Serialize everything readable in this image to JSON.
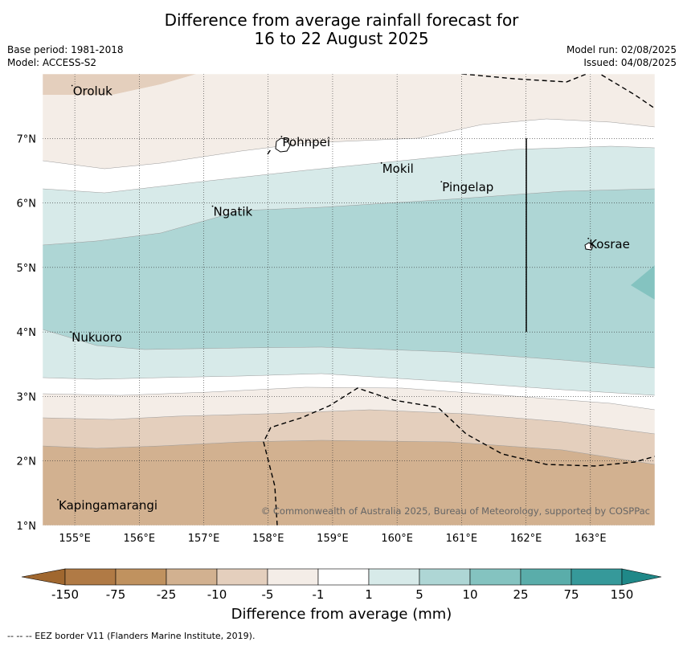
{
  "title_line1": "Difference from average rainfall forecast for",
  "title_line2": "16 to 22 August 2025",
  "base_period": "Base period: 1981-2018",
  "model": "Model: ACCESS-S2",
  "model_run": "Model run: 02/08/2025",
  "issued": "Issued: 04/08/2025",
  "copyright": "© Commonwealth of Australia 2025, Bureau of Meteorology, supported by COSPPac",
  "map": {
    "lon_range": [
      154.5,
      164.0
    ],
    "lat_range": [
      1.0,
      8.0
    ],
    "lon_ticks": [
      "155°E",
      "156°E",
      "157°E",
      "158°E",
      "159°E",
      "160°E",
      "161°E",
      "162°E",
      "163°E"
    ],
    "lat_ticks": [
      "1°N",
      "2°N",
      "3°N",
      "4°N",
      "5°N",
      "6°N",
      "7°N"
    ],
    "places": [
      {
        "name": "Oroluk",
        "lon": 154.97,
        "lat": 7.67
      },
      {
        "name": "Pohnpei",
        "lon": 158.22,
        "lat": 6.88
      },
      {
        "name": "Mokil",
        "lon": 159.77,
        "lat": 6.47
      },
      {
        "name": "Pingelap",
        "lon": 160.7,
        "lat": 6.18
      },
      {
        "name": "Ngatik",
        "lon": 157.15,
        "lat": 5.8
      },
      {
        "name": "Kosrae",
        "lon": 162.98,
        "lat": 5.3
      },
      {
        "name": "Nukuoro",
        "lon": 154.95,
        "lat": 3.85
      },
      {
        "name": "Kapingamarangi",
        "lon": 154.75,
        "lat": 1.25
      }
    ]
  },
  "legend": {
    "ticks": [
      "-150",
      "-75",
      "-25",
      "-10",
      "-5",
      "-1",
      "1",
      "5",
      "10",
      "25",
      "75",
      "150"
    ],
    "colors": [
      "#b07a45",
      "#c0925f",
      "#d2b190",
      "#e4cfbd",
      "#f4ede7",
      "#ffffff",
      "#d7eae9",
      "#aed6d5",
      "#84c3c0",
      "#5aadaa",
      "#36999a"
    ],
    "unit_label": "Difference from average (mm)"
  },
  "footnote": "--  --  -- EEZ border V11 (Flanders Marine Institute, 2019)."
}
